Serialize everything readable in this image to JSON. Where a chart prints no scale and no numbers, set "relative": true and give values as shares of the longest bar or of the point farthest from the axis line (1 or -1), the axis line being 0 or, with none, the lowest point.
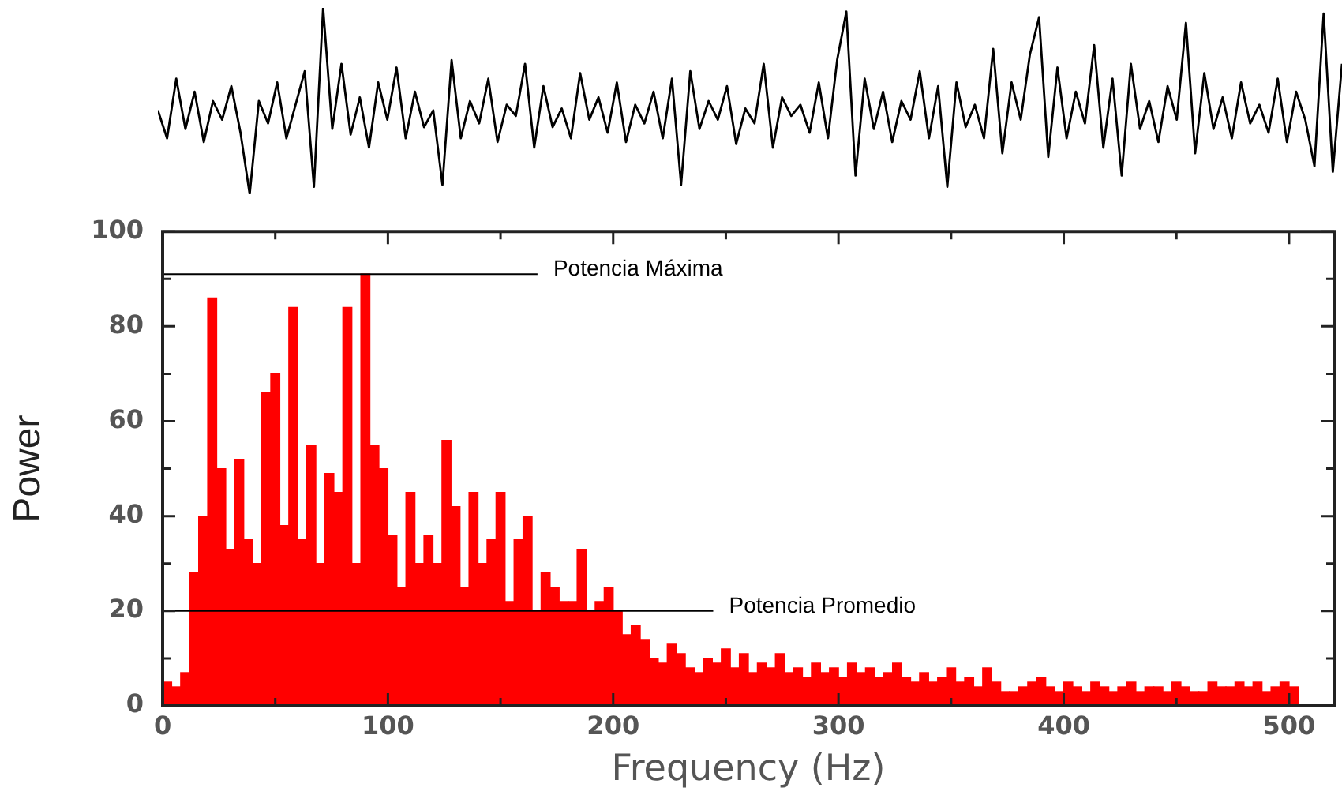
{
  "chart_data": [
    {
      "type": "line",
      "relative": true,
      "color": "#000000",
      "marker": "none",
      "categories": [
        null,
        null,
        null,
        null,
        null,
        null,
        null,
        null,
        null,
        null,
        null,
        null,
        null,
        null,
        null,
        null,
        null,
        null,
        null,
        null,
        null,
        null,
        null,
        null,
        null,
        null,
        null,
        null,
        null,
        null,
        null,
        null,
        null,
        null,
        null,
        null,
        null,
        null,
        null,
        null,
        null,
        null,
        null,
        null,
        null,
        null,
        null,
        null,
        null,
        null,
        null,
        null,
        null,
        null,
        null,
        null,
        null,
        null,
        null,
        null,
        null,
        null,
        null,
        null,
        null,
        null,
        null,
        null,
        null,
        null,
        null,
        null,
        null,
        null,
        null,
        null,
        null,
        null,
        null,
        null,
        null,
        null,
        null,
        null,
        null,
        null,
        null,
        null,
        null,
        null,
        null,
        null,
        null,
        null,
        null,
        null,
        null,
        null,
        null,
        null,
        null,
        null,
        null,
        null,
        null,
        null,
        null,
        null,
        null,
        null,
        null,
        null,
        null,
        null,
        null,
        null,
        null,
        null,
        null,
        null,
        null,
        null,
        null,
        null,
        null,
        null,
        null,
        null,
        null,
        null
      ],
      "values": [
        0.45,
        0.3,
        0.62,
        0.35,
        0.55,
        0.28,
        0.5,
        0.4,
        0.58,
        0.33,
        0,
        0.5,
        0.38,
        0.6,
        0.3,
        0.48,
        0.66,
        0.04,
        1.0,
        0.35,
        0.7,
        0.32,
        0.52,
        0.25,
        0.6,
        0.4,
        0.68,
        0.3,
        0.55,
        0.36,
        0.45,
        0.05,
        0.72,
        0.3,
        0.5,
        0.38,
        0.62,
        0.28,
        0.48,
        0.42,
        0.7,
        0.25,
        0.58,
        0.36,
        0.46,
        0.3,
        0.65,
        0.4,
        0.52,
        0.33,
        0.6,
        0.28,
        0.48,
        0.38,
        0.55,
        0.3,
        0.62,
        0.05,
        0.66,
        0.35,
        0.5,
        0.4,
        0.58,
        0.27,
        0.46,
        0.38,
        0.7,
        0.25,
        0.52,
        0.42,
        0.48,
        0.33,
        0.6,
        0.3,
        0.72,
        0.98,
        0.1,
        0.62,
        0.35,
        0.55,
        0.28,
        0.5,
        0.4,
        0.66,
        0.3,
        0.58,
        0.04,
        0.6,
        0.36,
        0.48,
        0.3,
        0.78,
        0.22,
        0.6,
        0.4,
        0.75,
        0.95,
        0.2,
        0.68,
        0.3,
        0.55,
        0.38,
        0.8,
        0.25,
        0.62,
        0.1,
        0.7,
        0.35,
        0.5,
        0.28,
        0.58,
        0.4,
        0.92,
        0.22,
        0.65,
        0.35,
        0.52,
        0.3,
        0.6,
        0.38,
        0.48,
        0.33,
        0.62,
        0.28,
        0.55,
        0.4,
        0.15,
        0.97,
        0.12,
        0.7
      ]
    },
    {
      "type": "histogram",
      "color": "#ff0000",
      "xlabel": "Frequency (Hz)",
      "ylabel": "Power",
      "grid": false,
      "xlim": [
        0,
        520
      ],
      "ylim": [
        0,
        100
      ],
      "xticks": [
        0,
        {
          "value": 50,
          "label": null
        },
        100,
        {
          "value": 150,
          "label": null
        },
        200,
        {
          "value": 250,
          "label": null
        },
        300,
        {
          "value": 350,
          "label": null
        },
        400,
        {
          "value": 450,
          "label": null
        },
        500
      ],
      "yticks": [
        0,
        {
          "value": 10,
          "label": null
        },
        20,
        {
          "value": 30,
          "label": null
        },
        40,
        {
          "value": 50,
          "label": null
        },
        60,
        {
          "value": 70,
          "label": null
        },
        80,
        {
          "value": 90,
          "label": null
        },
        100
      ],
      "bins": [
        0,
        4,
        8,
        12,
        16,
        20,
        24,
        28,
        32,
        36,
        40,
        44,
        48,
        52,
        56,
        60,
        64,
        68,
        72,
        76,
        80,
        84,
        88,
        92,
        96,
        100,
        104,
        108,
        112,
        116,
        120,
        124,
        128,
        132,
        136,
        140,
        144,
        148,
        152,
        156,
        160,
        164,
        168,
        172,
        176,
        180,
        184,
        188,
        192,
        196,
        200,
        204,
        208,
        212,
        216,
        220,
        224,
        228,
        232,
        236,
        240,
        244,
        248,
        252,
        256,
        260,
        264,
        268,
        272,
        276,
        280,
        284,
        288,
        292,
        296,
        300,
        304,
        308,
        312,
        316,
        320,
        324,
        328,
        332,
        336,
        340,
        344,
        348,
        352,
        356,
        360,
        364,
        368,
        372,
        376,
        380,
        384,
        388,
        392,
        396,
        400,
        404,
        408,
        412,
        416,
        420,
        424,
        428,
        432,
        436,
        440,
        444,
        448,
        452,
        456,
        460,
        464,
        468,
        472,
        476,
        480,
        484,
        488,
        492,
        496,
        500,
        504
      ],
      "values": [
        5,
        4,
        7,
        28,
        40,
        86,
        50,
        33,
        52,
        35,
        30,
        66,
        70,
        38,
        84,
        35,
        55,
        30,
        49,
        45,
        84,
        30,
        91,
        55,
        50,
        36,
        25,
        45,
        30,
        36,
        30,
        56,
        42,
        25,
        45,
        30,
        35,
        45,
        22,
        35,
        40,
        20,
        28,
        25,
        22,
        22,
        33,
        20,
        22,
        25,
        20,
        15,
        17,
        14,
        10,
        9,
        13,
        11,
        8,
        7,
        10,
        9,
        12,
        8,
        11,
        7,
        9,
        8,
        11,
        7,
        8,
        6,
        9,
        7,
        8,
        6,
        9,
        7,
        8,
        6,
        7,
        9,
        6,
        5,
        7,
        5,
        6,
        8,
        5,
        6,
        4,
        8,
        5,
        3,
        3,
        4,
        5,
        6,
        4,
        3,
        5,
        4,
        3,
        5,
        4,
        3,
        4,
        5,
        3,
        4,
        4,
        3,
        5,
        4,
        3,
        3,
        5,
        4,
        4,
        5,
        4,
        5,
        3,
        4,
        5,
        4
      ],
      "ref_lines": [
        {
          "axis": "y",
          "value": 91,
          "label": "Potencia Máxima",
          "color": "#000000"
        },
        {
          "axis": "y",
          "value": 20,
          "label": "Potencia Promedio",
          "color": "#000000"
        }
      ]
    }
  ]
}
